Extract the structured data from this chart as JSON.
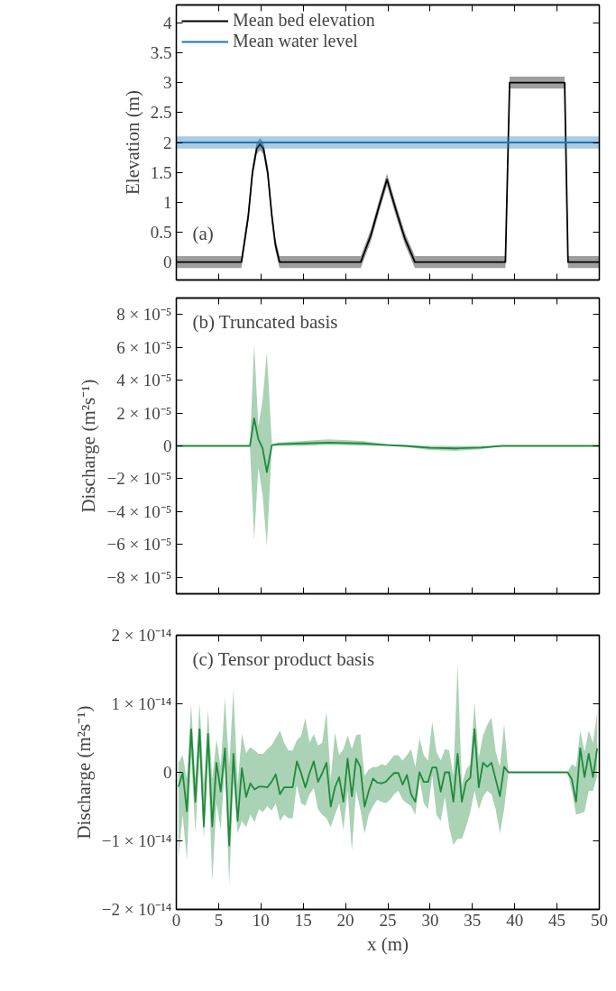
{
  "chart_data": [
    {
      "type": "line",
      "title": "(a)",
      "ylabel": "Elevation (m)",
      "xlim": [
        0,
        50
      ],
      "xticks": [
        0,
        5,
        10,
        15,
        20,
        25,
        30,
        35,
        40,
        45,
        50
      ],
      "ylim": [
        -0.3,
        4.3
      ],
      "yticks": [
        0,
        0.5,
        1,
        1.5,
        2,
        2.5,
        3,
        3.5,
        4
      ],
      "tick_labels": "y",
      "legend": "top left",
      "series": [
        {
          "name": "Mean bed elevation",
          "color": "#000000",
          "x": [
            0,
            7.7,
            8.5,
            9,
            9.5,
            9.9,
            10.3,
            10.8,
            11.3,
            11.7,
            12.2,
            21.8,
            23,
            24,
            24.9,
            26,
            27,
            28.2,
            38.9,
            39.4,
            45.9,
            46.3,
            50
          ],
          "values": [
            0,
            0,
            0.76,
            1.5,
            1.9,
            1.97,
            1.9,
            1.5,
            0.76,
            0.3,
            0,
            0,
            0.45,
            0.95,
            1.38,
            0.85,
            0.4,
            0,
            0,
            3,
            3,
            0,
            0
          ],
          "lower": [
            -0.1,
            -0.1,
            0.66,
            1.4,
            1.8,
            1.87,
            1.8,
            1.4,
            0.66,
            0.2,
            -0.1,
            -0.1,
            0.35,
            0.85,
            1.28,
            0.75,
            0.3,
            -0.1,
            -0.1,
            2.9,
            2.9,
            -0.1,
            -0.1
          ],
          "upper": [
            0.1,
            0.1,
            0.86,
            1.6,
            2.0,
            2.07,
            2.0,
            1.6,
            0.86,
            0.4,
            0.1,
            0.1,
            0.55,
            1.05,
            1.48,
            0.95,
            0.5,
            0.1,
            0.1,
            3.1,
            3.1,
            0.1,
            0.1
          ]
        },
        {
          "name": "Mean water level",
          "color": "#1f77b4",
          "x": [
            0,
            50
          ],
          "values": [
            2,
            2
          ],
          "lower": [
            1.9,
            1.9
          ],
          "upper": [
            2.1,
            2.1
          ]
        }
      ]
    },
    {
      "type": "line",
      "title": "(b) Truncated basis",
      "ylabel": "Discharge (m²s⁻¹)",
      "xlim": [
        0,
        50
      ],
      "xticks": [
        0,
        5,
        10,
        15,
        20,
        25,
        30,
        35,
        40,
        45,
        50
      ],
      "ylim": [
        -9e-05,
        9e-05
      ],
      "yticks": [
        {
          "value": -8e-05,
          "label": "−8 × 10⁻⁵"
        },
        {
          "value": -6e-05,
          "label": "−6 × 10⁻⁵"
        },
        {
          "value": -4e-05,
          "label": "−4 × 10⁻⁵"
        },
        {
          "value": -2e-05,
          "label": "−2 × 10⁻⁵"
        },
        0,
        {
          "value": 2e-05,
          "label": "2 × 10⁻⁵"
        },
        {
          "value": 4e-05,
          "label": "4 × 10⁻⁵"
        },
        {
          "value": 6e-05,
          "label": "6 × 10⁻⁵"
        },
        {
          "value": 8e-05,
          "label": "8 × 10⁻⁵"
        }
      ],
      "tick_labels": "y",
      "series": [
        {
          "color": "#1f8a3c",
          "x": [
            0,
            8.7,
            9.2,
            9.7,
            10.2,
            10.7,
            11.3,
            12,
            15,
            18,
            22,
            25,
            27,
            30,
            33,
            36,
            38.5,
            50
          ],
          "values": [
            0,
            0,
            1.68e-05,
            4e-06,
            -1.5e-06,
            -1.6e-05,
            5e-07,
            1e-06,
            1.5e-06,
            2e-06,
            1.5e-06,
            5e-07,
            0,
            -1.2e-06,
            -1.5e-06,
            -1e-06,
            0,
            0
          ],
          "lower": [
            0,
            0,
            -5.7e-05,
            -1.3e-05,
            -3e-05,
            -6.1e-05,
            0,
            0,
            0,
            5e-07,
            2e-07,
            0,
            -5e-07,
            -2.5e-06,
            -3e-06,
            -2e-06,
            0,
            0
          ],
          "upper": [
            0,
            0,
            6.2e-05,
            1.2e-05,
            2.8e-05,
            5.7e-05,
            1e-06,
            2e-06,
            3e-06,
            4e-06,
            3e-06,
            1e-06,
            5e-07,
            0,
            0,
            0,
            0,
            0
          ]
        }
      ]
    },
    {
      "type": "line",
      "title": "(c) Tensor product basis",
      "xlabel": "x (m)",
      "ylabel": "Discharge (m²s⁻¹)",
      "xlim": [
        0,
        50
      ],
      "xticks": [
        0,
        5,
        10,
        15,
        20,
        25,
        30,
        35,
        40,
        45,
        50
      ],
      "ylim": [
        -2e-14,
        2e-14
      ],
      "yticks": [
        {
          "value": -2e-14,
          "label": "−2 × 10⁻¹⁴"
        },
        {
          "value": -1e-14,
          "label": "−1 × 10⁻¹⁴"
        },
        0,
        {
          "value": 1e-14,
          "label": "1 × 10⁻¹⁴"
        },
        {
          "value": 2e-14,
          "label": "2 × 10⁻¹⁴"
        }
      ],
      "x": [
        0.25,
        0.75,
        1.25,
        1.75,
        2.25,
        2.75,
        3.25,
        3.75,
        4.25,
        4.75,
        5.25,
        5.75,
        6.25,
        6.75,
        7.25,
        7.75,
        8.25,
        8.75,
        9.25,
        9.75,
        10.25,
        10.75,
        11.25,
        11.75,
        12.25,
        12.75,
        13.25,
        13.75,
        14.25,
        14.75,
        15.25,
        15.75,
        16.25,
        16.75,
        17.25,
        17.75,
        18.25,
        18.75,
        19.25,
        19.75,
        20.25,
        20.75,
        21.25,
        21.75,
        22.25,
        22.75,
        23.25,
        23.75,
        24.25,
        24.75,
        25.25,
        25.75,
        26.25,
        26.75,
        27.25,
        27.75,
        28.25,
        28.75,
        29.25,
        29.75,
        30.25,
        30.75,
        31.25,
        31.75,
        32.25,
        32.75,
        33.25,
        33.75,
        34.25,
        34.75,
        35.25,
        35.75,
        36.25,
        36.75,
        37.25,
        37.75,
        38.25,
        38.75,
        39.25,
        39.75,
        40.25,
        40.75,
        41.25,
        41.75,
        42.25,
        42.75,
        43.25,
        43.75,
        44.25,
        44.75,
        45.25,
        45.75,
        46.25,
        46.75,
        47.25,
        47.75,
        48.25,
        48.75,
        49.25,
        49.75
      ],
      "series": [
        {
          "color": "#1f8a3c",
          "values": [
            -2.1e-15,
            -1e-16,
            -5.7e-15,
            6.3e-15,
            -4.3e-15,
            6.3e-15,
            -7.9e-15,
            5.6e-15,
            -7.9e-15,
            1.4e-15,
            -2.8e-15,
            3.5e-15,
            -1.07e-14,
            2.7e-15,
            -7.1e-15,
            6e-16,
            -3.6e-15,
            -1.6e-15,
            -2.5e-15,
            -2.1e-15,
            -2.1e-15,
            -2.2e-15,
            -1.4e-15,
            -3e-16,
            -3.2e-15,
            -2.2e-15,
            -2.2e-15,
            -2.2e-15,
            1.6e-15,
            -1e-16,
            -2.2e-15,
            -1e-16,
            1.6e-15,
            -1.4e-15,
            -1e-16,
            1.4e-15,
            -5e-15,
            -2.2e-15,
            -7e-16,
            -4.3e-15,
            2e-15,
            -3.5e-15,
            2e-15,
            8e-16,
            -5e-15,
            -2.7e-15,
            -9e-16,
            -1.5e-15,
            -1.6e-15,
            -1.4e-15,
            -7e-16,
            -1e-16,
            -1e-16,
            -1.8e-15,
            -4e-16,
            -3.2e-15,
            -4.3e-15,
            0,
            -1.4e-15,
            -1.4e-15,
            7e-16,
            7e-16,
            -2.8e-15,
            0,
            0,
            -4.3e-15,
            2.7e-15,
            -4.3e-15,
            -1.4e-15,
            -8e-16,
            6.3e-15,
            -2.2e-15,
            1.4e-15,
            8e-16,
            1.4e-15,
            -1e-15,
            -3.5e-15,
            8e-16,
            0,
            0,
            0,
            0,
            0,
            0,
            0,
            0,
            0,
            0,
            0,
            0,
            0,
            0,
            0,
            -1e-15,
            -4.3e-15,
            3.5e-15,
            -7e-16,
            2.7e-15,
            -7e-16,
            3.5e-15
          ],
          "upper": [
            1.4e-15,
            2.5e-15,
            -1e-15,
            1e-14,
            -1e-15,
            1.01e-14,
            -1.8e-15,
            9.1e-15,
            -1e-15,
            4.8e-15,
            8e-16,
            1.09e-14,
            8e-16,
            1.21e-14,
            -1.8e-15,
            5.6e-15,
            2.8e-15,
            3.7e-15,
            3.2e-15,
            2.7e-15,
            2.7e-15,
            3.4e-15,
            3.9e-15,
            5e-15,
            6.1e-15,
            4.3e-15,
            3.2e-15,
            3.2e-15,
            4.7e-15,
            5.3e-15,
            7.9e-15,
            4.3e-15,
            5.6e-15,
            3.9e-15,
            4.3e-15,
            8.9e-15,
            -1e-15,
            5.8e-15,
            2.5e-15,
            3.4e-15,
            5.4e-15,
            3.4e-15,
            5.4e-15,
            5.6e-15,
            -5e-16,
            4e-16,
            8e-16,
            8e-16,
            1.2e-15,
            1e-15,
            1.7e-15,
            2.5e-15,
            2.5e-15,
            1.7e-15,
            2.5e-15,
            3.4e-15,
            8e-16,
            5e-15,
            2.5e-15,
            1.7e-15,
            7.4e-15,
            3e-15,
            1.7e-15,
            3.4e-15,
            3.2e-15,
            -5e-16,
            1.59e-14,
            -1.8e-15,
            4e-16,
            1.2e-15,
            1.02e-14,
            2.1e-15,
            5.4e-15,
            6.9e-15,
            8e-15,
            3e-15,
            8e-16,
            7e-15,
            0,
            0,
            0,
            0,
            0,
            0,
            0,
            0,
            0,
            0,
            0,
            0,
            0,
            0,
            0,
            1.2e-15,
            8e-16,
            6.1e-15,
            3e-15,
            6.1e-15,
            4.3e-15,
            8.7e-15
          ],
          "lower": [
            -1.24e-14,
            -6.2e-15,
            -1.28e-14,
            2.5e-15,
            -8.9e-15,
            2.5e-15,
            -9.7e-15,
            1.7e-15,
            -1.59e-14,
            -4.5e-15,
            -8.4e-15,
            1.2e-15,
            -1.63e-14,
            -1.4e-15,
            -8.9e-15,
            -7.1e-15,
            -8e-15,
            -6.2e-15,
            -7.3e-15,
            -5.4e-15,
            -5.8e-15,
            -4.9e-15,
            -5.6e-15,
            -4.5e-15,
            -7.1e-15,
            -6.2e-15,
            -6.7e-15,
            -6.7e-15,
            -1.8e-15,
            -4.5e-15,
            -4.9e-15,
            -3.2e-15,
            -2.3e-15,
            -5.4e-15,
            -6.2e-15,
            -6.7e-15,
            -8e-15,
            -6.2e-15,
            -4.5e-15,
            -8.4e-15,
            -2.7e-15,
            -1.15e-14,
            -2.7e-15,
            -5.4e-15,
            -8.9e-15,
            -6.2e-15,
            -4.9e-15,
            -4e-15,
            -4.3e-15,
            -4.5e-15,
            -4e-15,
            -3.2e-15,
            -2.7e-15,
            -4e-15,
            -4.5e-15,
            -4.9e-15,
            -6.2e-15,
            -1e-15,
            -4.5e-15,
            -5.4e-15,
            -5e-16,
            -6.2e-15,
            -7.1e-15,
            -3.6e-15,
            -8e-15,
            -1.06e-14,
            -9.7e-15,
            -9.7e-15,
            -8e-15,
            -5.8e-15,
            -2.7e-15,
            -5.4e-15,
            -3.6e-15,
            -2.7e-15,
            -3.2e-15,
            -5.4e-15,
            -8.9e-15,
            -5.4e-15,
            0,
            0,
            0,
            0,
            0,
            0,
            0,
            0,
            0,
            0,
            0,
            0,
            0,
            0,
            0,
            -2.7e-15,
            -6.2e-15,
            -6e-15,
            -5.8e-15,
            -2.7e-15,
            -2.7e-15,
            -5e-16
          ]
        }
      ]
    }
  ]
}
